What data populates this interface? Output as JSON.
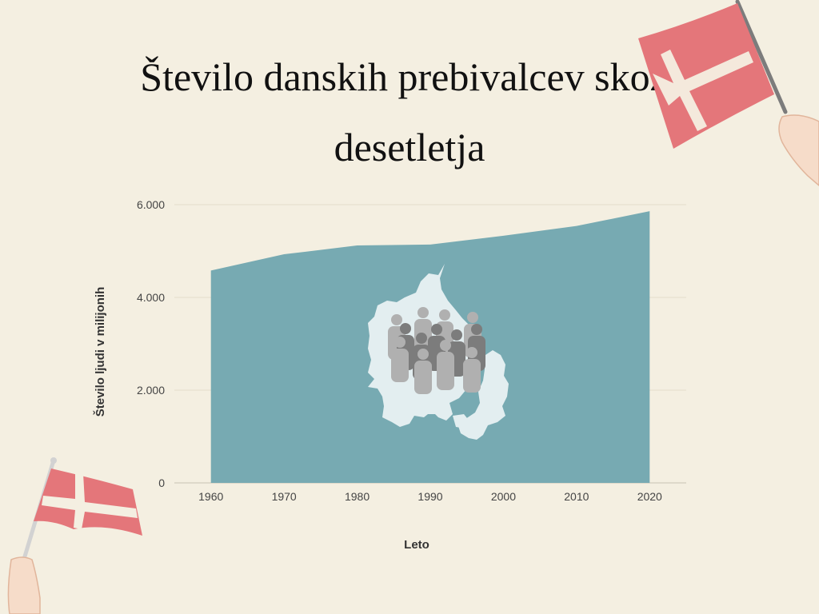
{
  "title": "Število danskih prebivalcev skozi desetletja",
  "colors": {
    "background": "#f4efe1",
    "area": "#77aab2",
    "flag_red": "#e4767a",
    "flag_cross": "#f4efe1",
    "map": "#e3eef0",
    "people_light": "#b0b0b0",
    "people_dark": "#7c7c7c"
  },
  "decorations": {
    "flag_top_right": "flag-denmark-icon",
    "flag_bottom_left": "flag-denmark-icon",
    "center_image": "denmark-map-with-people-icon"
  },
  "chart_data": {
    "type": "area",
    "title": "",
    "xlabel": "Leto",
    "ylabel": "Število ljudi v milijonih",
    "x": [
      1960,
      1970,
      1980,
      1990,
      2000,
      2010,
      2020
    ],
    "x_tick_labels": [
      "1960",
      "1970",
      "1980",
      "1990",
      "2000",
      "2010",
      "2020"
    ],
    "y_ticks": [
      0,
      2000,
      4000,
      6000
    ],
    "y_tick_labels": [
      "0",
      "2.000",
      "4.000",
      "6.000"
    ],
    "ylim": [
      0,
      6000
    ],
    "xlim": [
      1955,
      2025
    ],
    "grid": true,
    "legend": "none",
    "series": [
      {
        "values": [
          4580,
          4930,
          5120,
          5140,
          5330,
          5540,
          5860
        ]
      }
    ]
  }
}
